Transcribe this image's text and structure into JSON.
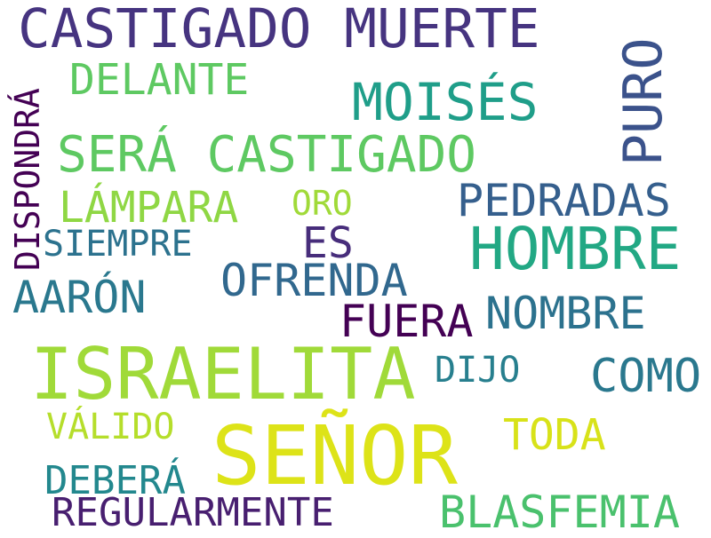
{
  "words": [
    {
      "text": "CASTIGADO MUERTE",
      "color": "#463480"
    },
    {
      "text": "DELANTE",
      "color": "#5ec962"
    },
    {
      "text": "DISPONDRÁ",
      "color": "#440154"
    },
    {
      "text": "MOISÉS",
      "color": "#1f9e89"
    },
    {
      "text": "PURO",
      "color": "#3b528b"
    },
    {
      "text": "SERÁ CASTIGADO",
      "color": "#5ec962"
    },
    {
      "text": "LÁMPARA",
      "color": "#8fd744"
    },
    {
      "text": "ORO",
      "color": "#a0da39"
    },
    {
      "text": "PEDRADAS",
      "color": "#355f8d"
    },
    {
      "text": "SIEMPRE",
      "color": "#2c728e"
    },
    {
      "text": "ES",
      "color": "#472d7b"
    },
    {
      "text": "HOMBRE",
      "color": "#22a884"
    },
    {
      "text": "OFRENDA",
      "color": "#31688e"
    },
    {
      "text": "AARÓN",
      "color": "#2a788e"
    },
    {
      "text": "FUERA",
      "color": "#440154"
    },
    {
      "text": "NOMBRE",
      "color": "#2c728e"
    },
    {
      "text": "ISRAELITA",
      "color": "#a0da39"
    },
    {
      "text": "DIJO",
      "color": "#277f8e"
    },
    {
      "text": "COMO",
      "color": "#2a788e"
    },
    {
      "text": "VÁLIDO",
      "color": "#b5de2b"
    },
    {
      "text": "SEÑOR",
      "color": "#dde318"
    },
    {
      "text": "TODA",
      "color": "#d8e219"
    },
    {
      "text": "DEBERÁ",
      "color": "#23888e"
    },
    {
      "text": "REGULARMENTE",
      "color": "#481f70"
    },
    {
      "text": "BLASFEMIA",
      "color": "#4ac16d"
    }
  ]
}
